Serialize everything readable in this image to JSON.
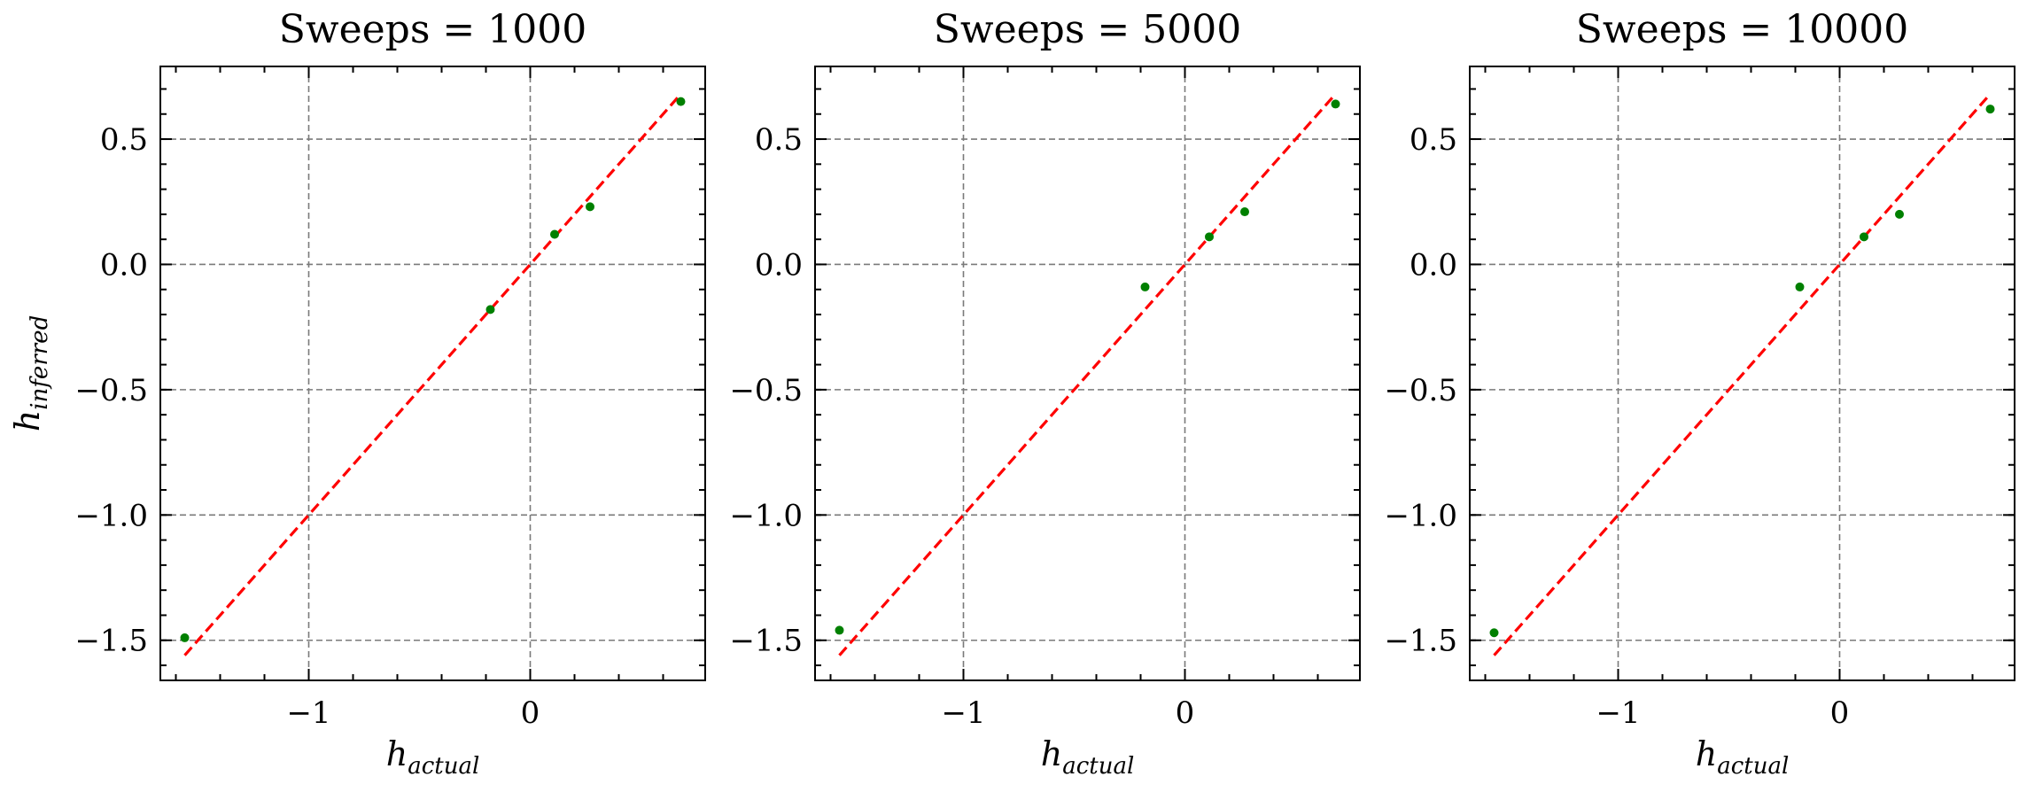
{
  "chart_data": [
    {
      "type": "scatter",
      "title": "Sweeps = 1000",
      "xlabel": "h_actual",
      "ylabel": "h_inferred",
      "xticks": [
        -1,
        0
      ],
      "xtick_labels": [
        "−1",
        "0"
      ],
      "yticks": [
        -1.5,
        -1.0,
        -0.5,
        0.0,
        0.5
      ],
      "ytick_labels": [
        "−1.5",
        "−1.0",
        "−0.5",
        "0.0",
        "0.5"
      ],
      "xlim": [
        -1.67,
        0.79
      ],
      "ylim": [
        -1.66,
        0.79
      ],
      "grid": true,
      "series": [
        {
          "x": [
            -1.56,
            -0.18,
            0.11,
            0.27,
            0.68
          ],
          "y": [
            -1.49,
            -0.18,
            0.12,
            0.23,
            0.65
          ],
          "color": "#008000"
        }
      ],
      "reference_line": {
        "x": [
          -1.56,
          0.68
        ],
        "y": [
          -1.56,
          0.68
        ],
        "color": "#ff0000",
        "style": "dashed"
      }
    },
    {
      "type": "scatter",
      "title": "Sweeps = 5000",
      "xlabel": "h_actual",
      "ylabel": "",
      "xticks": [
        -1,
        0
      ],
      "xtick_labels": [
        "−1",
        "0"
      ],
      "yticks": [
        -1.5,
        -1.0,
        -0.5,
        0.0,
        0.5
      ],
      "ytick_labels": [
        "−1.5",
        "−1.0",
        "−0.5",
        "0.0",
        "0.5"
      ],
      "xlim": [
        -1.67,
        0.79
      ],
      "ylim": [
        -1.66,
        0.79
      ],
      "grid": true,
      "series": [
        {
          "x": [
            -1.56,
            -0.18,
            0.11,
            0.27,
            0.68
          ],
          "y": [
            -1.46,
            -0.09,
            0.11,
            0.21,
            0.64
          ],
          "color": "#008000"
        }
      ],
      "reference_line": {
        "x": [
          -1.56,
          0.68
        ],
        "y": [
          -1.56,
          0.68
        ],
        "color": "#ff0000",
        "style": "dashed"
      }
    },
    {
      "type": "scatter",
      "title": "Sweeps = 10000",
      "xlabel": "h_actual",
      "ylabel": "",
      "xticks": [
        -1,
        0
      ],
      "xtick_labels": [
        "−1",
        "0"
      ],
      "yticks": [
        -1.5,
        -1.0,
        -0.5,
        0.0,
        0.5
      ],
      "ytick_labels": [
        "−1.5",
        "−1.0",
        "−0.5",
        "0.0",
        "0.5"
      ],
      "xlim": [
        -1.67,
        0.79
      ],
      "ylim": [
        -1.66,
        0.79
      ],
      "grid": true,
      "series": [
        {
          "x": [
            -1.56,
            -0.18,
            0.11,
            0.27,
            0.68
          ],
          "y": [
            -1.47,
            -0.09,
            0.11,
            0.2,
            0.62
          ],
          "color": "#008000"
        }
      ],
      "reference_line": {
        "x": [
          -1.56,
          0.68
        ],
        "y": [
          -1.56,
          0.68
        ],
        "color": "#ff0000",
        "style": "dashed"
      }
    }
  ]
}
